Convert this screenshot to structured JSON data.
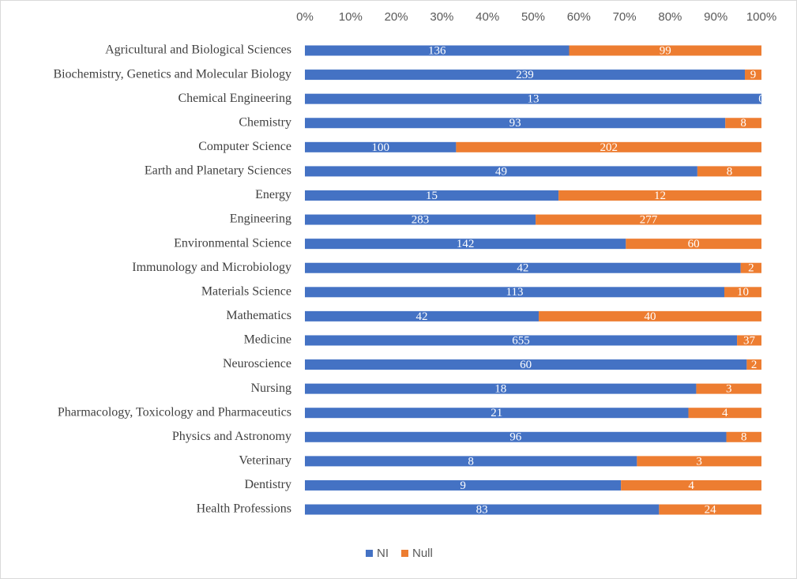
{
  "chart_data": {
    "type": "stacked_percent_bar",
    "orientation": "horizontal",
    "categories": [
      "Agricultural and Biological Sciences",
      "Biochemistry, Genetics and Molecular Biology",
      "Chemical Engineering",
      "Chemistry",
      "Computer Science",
      "Earth and Planetary Sciences",
      "Energy",
      "Engineering",
      "Environmental Science",
      "Immunology and Microbiology",
      "Materials Science",
      "Mathematics",
      "Medicine",
      "Neuroscience",
      "Nursing",
      "Pharmacology, Toxicology and Pharmaceutics",
      "Physics and Astronomy",
      "Veterinary",
      "Dentistry",
      "Health Professions"
    ],
    "series": [
      {
        "name": "NI",
        "color": "#4472c4",
        "values": [
          136,
          239,
          13,
          93,
          100,
          49,
          15,
          283,
          142,
          42,
          113,
          42,
          655,
          60,
          18,
          21,
          96,
          8,
          9,
          83
        ]
      },
      {
        "name": "Null",
        "color": "#ed7d31",
        "values": [
          99,
          9,
          0,
          8,
          202,
          8,
          12,
          277,
          60,
          2,
          10,
          40,
          37,
          2,
          3,
          4,
          8,
          3,
          4,
          24
        ]
      }
    ],
    "xlim": [
      0,
      100
    ],
    "xticks": [
      {
        "value": 0,
        "label": "0%"
      },
      {
        "value": 10,
        "label": "10%"
      },
      {
        "value": 20,
        "label": "20%"
      },
      {
        "value": 30,
        "label": "30%"
      },
      {
        "value": 40,
        "label": "40%"
      },
      {
        "value": 50,
        "label": "50%"
      },
      {
        "value": 60,
        "label": "60%"
      },
      {
        "value": 70,
        "label": "70%"
      },
      {
        "value": 80,
        "label": "80%"
      },
      {
        "value": 90,
        "label": "90%"
      },
      {
        "value": 100,
        "label": "100%"
      }
    ],
    "xaxis_position": "top",
    "grid": false,
    "legend": "bottom"
  }
}
